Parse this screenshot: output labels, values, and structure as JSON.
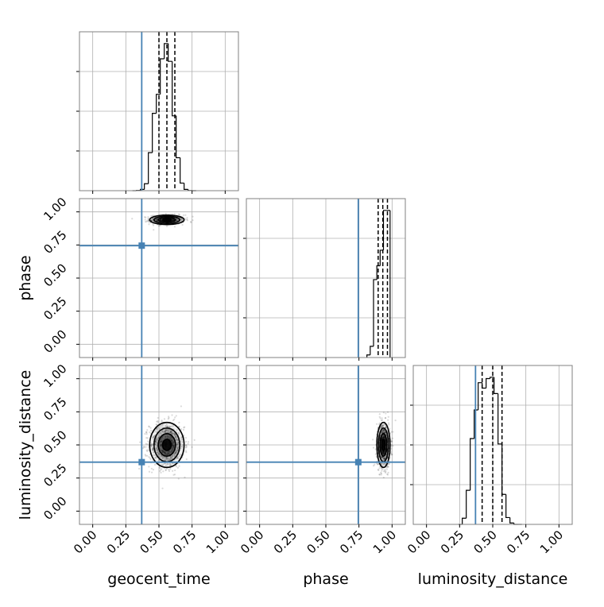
{
  "chart_data": {
    "type": "corner",
    "parameters": [
      "geocent_time",
      "phase",
      "luminosity_distance"
    ],
    "axis_range": [
      -0.1,
      1.1
    ],
    "tick_values": [
      0.0,
      0.25,
      0.5,
      0.75,
      1.0
    ],
    "tick_labels": [
      "0.00",
      "0.25",
      "0.50",
      "0.75",
      "1.00"
    ],
    "grid": true,
    "colors": {
      "truth": "#4682b4",
      "hist": "#000000",
      "grid": "#b0b0b0",
      "frame": "#808080"
    },
    "truths": {
      "geocent_time": 0.37,
      "phase": 0.745,
      "luminosity_distance": 0.37
    },
    "quantiles": {
      "geocent_time": [
        0.5,
        0.56,
        0.62
      ],
      "phase": [
        0.895,
        0.93,
        0.965
      ],
      "luminosity_distance": [
        0.42,
        0.5,
        0.57
      ]
    },
    "histograms": {
      "geocent_time": {
        "bin_edges": [
          0.3,
          0.33,
          0.36,
          0.39,
          0.42,
          0.45,
          0.48,
          0.51,
          0.54,
          0.57,
          0.6,
          0.63,
          0.66,
          0.69,
          0.72,
          0.75,
          0.78
        ],
        "counts": [
          0,
          2,
          10,
          55,
          300,
          610,
          760,
          1040,
          1160,
          1020,
          590,
          260,
          60,
          10,
          1,
          0
        ]
      },
      "phase": {
        "bin_edges": [
          0.81,
          0.835,
          0.86,
          0.885,
          0.91,
          0.935,
          0.96,
          0.985
        ],
        "counts": [
          30,
          130,
          900,
          1060,
          1240,
          1700,
          1700
        ]
      },
      "luminosity_distance": {
        "bin_edges": [
          0.24,
          0.27,
          0.3,
          0.33,
          0.36,
          0.39,
          0.42,
          0.45,
          0.48,
          0.51,
          0.54,
          0.57,
          0.6,
          0.63,
          0.66,
          0.69,
          0.72
        ],
        "counts": [
          0,
          45,
          250,
          630,
          840,
          1040,
          1000,
          1070,
          1080,
          960,
          590,
          220,
          50,
          10,
          0,
          0
        ]
      }
    },
    "posterior_2d": {
      "geocent_time_phase": {
        "x": "geocent_time",
        "y": "phase",
        "center": [
          0.56,
          0.94
        ],
        "spread": [
          0.065,
          0.018
        ],
        "n_samples": 600
      },
      "geocent_time_luminosity_distance": {
        "x": "geocent_time",
        "y": "luminosity_distance",
        "center": [
          0.56,
          0.5
        ],
        "spread": [
          0.065,
          0.085
        ],
        "n_samples": 900
      },
      "phase_luminosity_distance": {
        "x": "phase",
        "y": "luminosity_distance",
        "center": [
          0.935,
          0.5
        ],
        "spread": [
          0.025,
          0.085
        ],
        "n_samples": 900
      }
    }
  }
}
